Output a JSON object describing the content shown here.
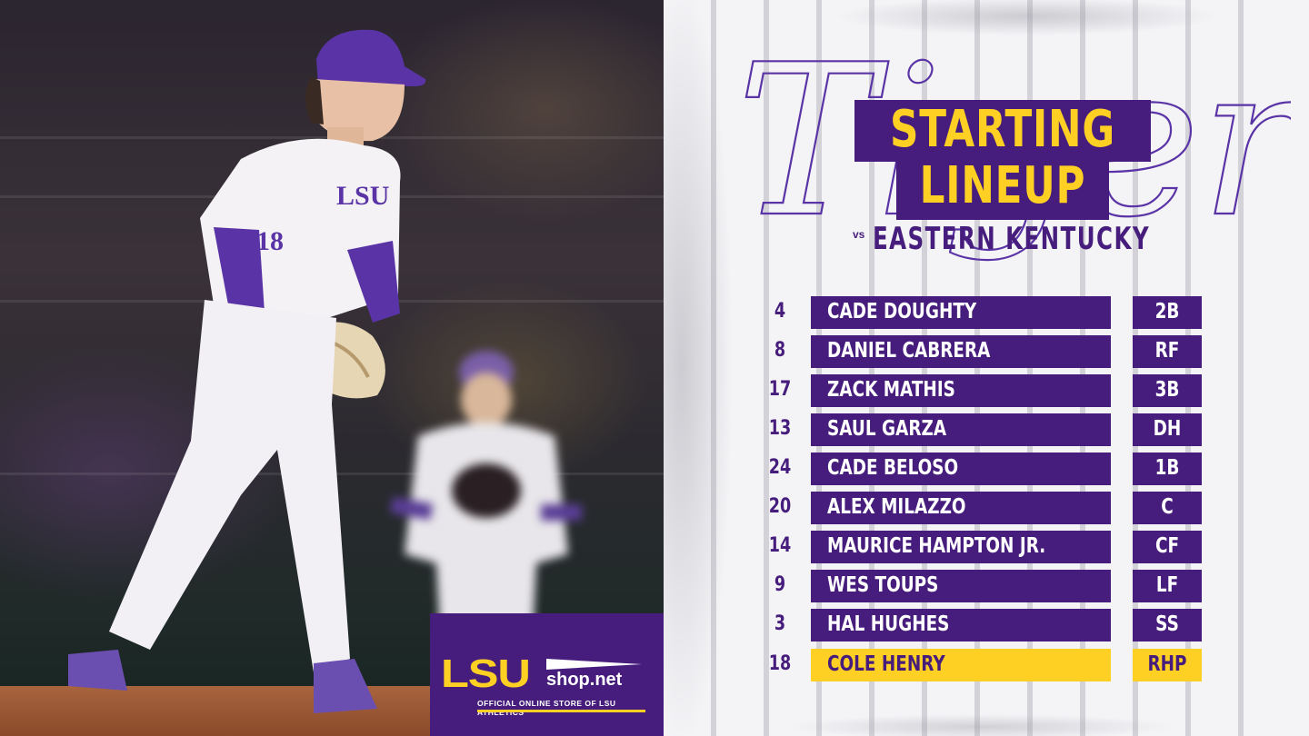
{
  "colors": {
    "purple": "#461d7c",
    "gold": "#fdd023",
    "panel": "#f4f3f6"
  },
  "graphic": {
    "script_word": "Tigers",
    "title_line1": "STARTING",
    "title_line2": "LINEUP",
    "vs_label": "vs",
    "opponent": "EASTERN KENTUCKY"
  },
  "photo": {
    "jersey_letters": "LSU",
    "jersey_number": "18"
  },
  "shop_badge": {
    "logo": "LSU",
    "suffix": "shop.net",
    "tagline": "OFFICIAL ONLINE STORE OF LSU ATHLETICS"
  },
  "lineup": [
    {
      "number": "4",
      "name": "CADE DOUGHTY",
      "position": "2B"
    },
    {
      "number": "8",
      "name": "DANIEL CABRERA",
      "position": "RF"
    },
    {
      "number": "17",
      "name": "ZACK MATHIS",
      "position": "3B"
    },
    {
      "number": "13",
      "name": "SAUL GARZA",
      "position": "DH"
    },
    {
      "number": "24",
      "name": "CADE BELOSO",
      "position": "1B"
    },
    {
      "number": "20",
      "name": "ALEX MILAZZO",
      "position": "C"
    },
    {
      "number": "14",
      "name": "MAURICE HAMPTON JR.",
      "position": "CF"
    },
    {
      "number": "9",
      "name": "WES TOUPS",
      "position": "LF"
    },
    {
      "number": "3",
      "name": "HAL HUGHES",
      "position": "SS"
    }
  ],
  "starting_pitcher": {
    "number": "18",
    "name": "COLE HENRY",
    "position": "RHP"
  }
}
